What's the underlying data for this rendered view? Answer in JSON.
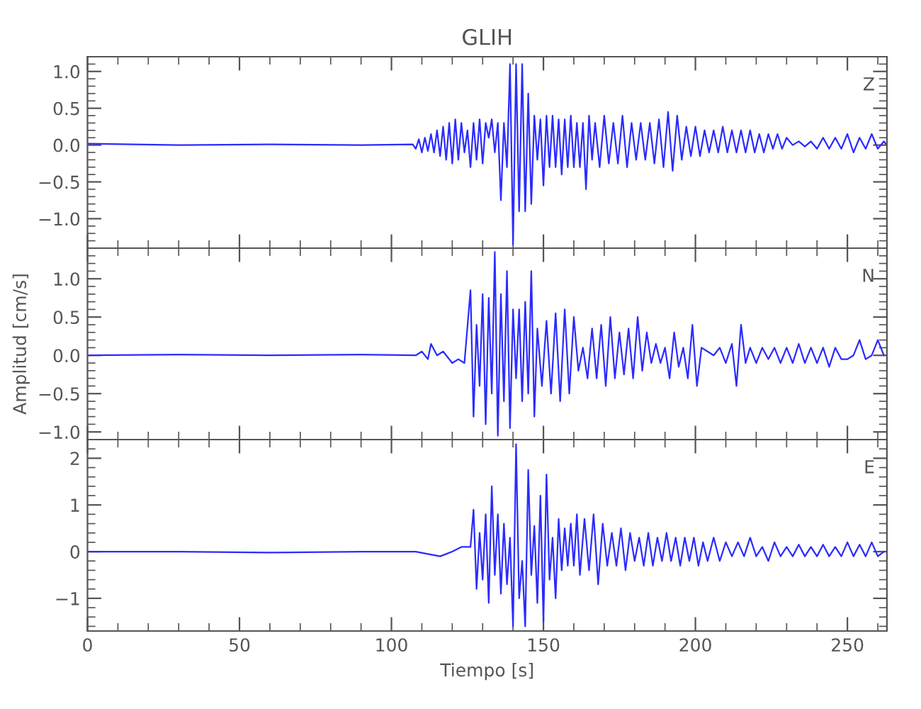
{
  "chart_data": [
    {
      "type": "line",
      "title": "GLIH",
      "annotations": [
        "Z"
      ],
      "xlim": [
        0,
        263
      ],
      "xticks": [
        0,
        50,
        100,
        150,
        200,
        250
      ],
      "ylim": [
        -1.4,
        1.2
      ],
      "yticks": [
        {
          "value": -1,
          "label": "−1.0"
        },
        {
          "value": -0.5,
          "label": "−0.5"
        },
        {
          "value": 0,
          "label": "0.0"
        },
        0.5,
        {
          "value": 1,
          "label": "1.0"
        }
      ],
      "tick_labels": "y",
      "grid": false,
      "legend": false,
      "x": [
        0,
        30,
        60,
        90,
        107,
        108,
        109,
        110,
        111,
        112,
        113,
        114,
        115,
        116,
        117,
        118,
        119,
        120,
        121,
        122,
        123,
        124,
        125,
        126,
        127,
        128,
        129,
        130,
        131,
        132,
        133,
        134,
        135,
        136,
        137,
        138,
        139,
        140,
        141,
        142,
        143,
        144,
        145,
        146,
        147,
        148,
        149,
        150,
        151,
        152,
        153,
        154,
        155,
        156,
        157,
        158,
        159,
        160,
        161,
        162,
        163,
        164,
        165,
        166,
        167,
        168.5,
        170,
        171.5,
        173,
        174.5,
        176,
        177.5,
        179,
        180.5,
        182,
        183.5,
        185,
        186.5,
        188,
        189.5,
        191,
        192.5,
        194,
        195.5,
        197,
        198.5,
        200,
        201.5,
        203,
        204.5,
        206,
        207.5,
        209,
        210.5,
        212,
        213.5,
        215,
        216.5,
        218,
        219.5,
        221,
        222.5,
        224,
        225.5,
        227,
        228.5,
        230,
        232,
        234,
        236,
        238,
        240,
        242,
        244,
        246,
        248,
        250,
        252,
        254,
        256,
        258,
        260,
        262,
        263
      ],
      "series": [
        {
          "color": "#2b2bff",
          "values": [
            0.02,
            0.0,
            0.01,
            0.0,
            0.01,
            -0.05,
            0.08,
            -0.1,
            0.1,
            -0.08,
            0.15,
            -0.1,
            0.2,
            -0.15,
            0.25,
            -0.2,
            0.3,
            -0.25,
            0.35,
            -0.2,
            0.3,
            -0.1,
            0.2,
            -0.3,
            0.3,
            -0.2,
            0.35,
            -0.25,
            0.3,
            0.1,
            0.35,
            -0.1,
            0.3,
            -0.75,
            0.3,
            -0.3,
            1.1,
            -1.35,
            1.1,
            -0.9,
            1.1,
            -0.9,
            0.7,
            -0.8,
            0.4,
            -0.2,
            0.35,
            -0.55,
            0.4,
            -0.3,
            0.4,
            -0.3,
            0.35,
            -0.4,
            0.35,
            -0.3,
            0.4,
            -0.3,
            0.3,
            -0.3,
            0.3,
            -0.6,
            0.4,
            -0.2,
            0.3,
            -0.3,
            0.4,
            -0.25,
            0.3,
            -0.25,
            0.4,
            -0.3,
            0.3,
            -0.2,
            0.3,
            -0.2,
            0.3,
            -0.25,
            0.35,
            -0.3,
            0.45,
            -0.35,
            0.4,
            -0.2,
            0.25,
            -0.15,
            0.25,
            -0.15,
            0.2,
            -0.1,
            0.2,
            -0.1,
            0.25,
            -0.1,
            0.2,
            -0.1,
            0.2,
            -0.1,
            0.2,
            -0.1,
            0.15,
            -0.1,
            0.15,
            -0.05,
            0.15,
            -0.05,
            0.1,
            0.0,
            0.05,
            -0.02,
            0.05,
            -0.05,
            0.1,
            -0.05,
            0.1,
            -0.05,
            0.15,
            -0.1,
            0.1,
            -0.05,
            0.15,
            -0.05,
            0.05,
            0.0
          ]
        }
      ]
    },
    {
      "type": "line",
      "ylabel": "Amplitud [cm/s]",
      "annotations": [
        "N"
      ],
      "xlim": [
        0,
        263
      ],
      "xticks": [
        0,
        50,
        100,
        150,
        200,
        250
      ],
      "ylim": [
        -1.1,
        1.4
      ],
      "yticks": [
        {
          "value": -1,
          "label": "−1.0"
        },
        {
          "value": -0.5,
          "label": "−0.5"
        },
        {
          "value": 0,
          "label": "0.0"
        },
        0.5,
        {
          "value": 1,
          "label": "1.0"
        }
      ],
      "tick_labels": "y",
      "grid": false,
      "legend": false,
      "x": [
        0,
        30,
        60,
        90,
        108,
        110,
        112,
        113,
        115,
        117,
        120,
        122,
        124,
        126,
        127,
        128,
        129,
        130,
        131,
        132,
        133,
        134,
        135,
        136,
        137,
        138,
        139,
        140,
        141,
        142,
        143,
        144,
        145,
        146,
        147,
        148,
        149.5,
        151,
        152.5,
        154,
        155.5,
        157,
        158.5,
        160,
        161.5,
        163,
        164.5,
        166,
        167.5,
        169,
        170.5,
        172,
        173.5,
        175,
        176.5,
        178,
        179.5,
        181,
        182.5,
        184,
        185.5,
        187,
        188.5,
        190,
        191.5,
        193,
        194.5,
        196,
        197.5,
        199,
        200.5,
        202,
        204,
        206,
        208,
        210,
        212,
        213.5,
        215,
        216.5,
        218,
        220,
        222,
        224,
        226,
        228,
        230,
        232,
        234,
        236,
        238,
        240,
        242,
        244,
        246,
        248,
        250,
        252,
        254,
        256,
        258,
        260,
        262
      ],
      "series": [
        {
          "color": "#2b2bff",
          "values": [
            0.0,
            0.01,
            0.0,
            0.01,
            0.0,
            0.05,
            -0.05,
            0.15,
            0.0,
            0.05,
            -0.1,
            -0.05,
            -0.1,
            0.85,
            -0.8,
            0.4,
            -0.4,
            0.8,
            -0.9,
            0.75,
            -0.5,
            1.35,
            -1.05,
            0.8,
            -0.6,
            1.1,
            -0.95,
            0.6,
            -0.3,
            0.6,
            -0.6,
            0.7,
            -0.5,
            1.1,
            -0.8,
            0.35,
            -0.4,
            0.45,
            -0.5,
            0.55,
            -0.6,
            0.6,
            -0.5,
            0.5,
            -0.2,
            0.1,
            -0.3,
            0.35,
            -0.3,
            0.4,
            -0.4,
            0.5,
            -0.3,
            0.3,
            -0.25,
            0.35,
            -0.3,
            0.5,
            -0.2,
            0.3,
            -0.1,
            0.15,
            -0.1,
            0.1,
            -0.3,
            0.3,
            -0.15,
            0.1,
            -0.3,
            0.4,
            -0.4,
            0.1,
            0.05,
            0.0,
            0.1,
            -0.1,
            0.15,
            -0.4,
            0.4,
            -0.1,
            0.1,
            -0.1,
            0.1,
            -0.05,
            0.1,
            -0.1,
            0.1,
            -0.1,
            0.15,
            -0.1,
            0.1,
            -0.1,
            0.1,
            -0.15,
            0.1,
            -0.05,
            -0.05,
            0.0,
            0.2,
            -0.05,
            0.0,
            0.2,
            0.0
          ]
        }
      ]
    },
    {
      "type": "line",
      "xlabel": "Tiempo [s]",
      "annotations": [
        "E"
      ],
      "xlim": [
        0,
        263
      ],
      "xticks": [
        0,
        50,
        100,
        150,
        200,
        250
      ],
      "ylim": [
        -1.7,
        2.4
      ],
      "yticks": [
        {
          "value": -1,
          "label": "−1"
        },
        0,
        1,
        2
      ],
      "grid": false,
      "legend": false,
      "x": [
        0,
        30,
        60,
        90,
        108,
        112,
        116,
        118,
        120,
        123,
        126,
        127,
        128,
        129,
        130,
        131,
        132,
        133,
        134,
        135,
        136,
        137,
        138,
        139,
        140,
        141,
        142,
        143,
        144,
        145,
        146,
        147,
        148,
        149,
        150,
        151,
        152,
        153,
        154,
        155,
        156,
        157,
        158,
        159,
        160,
        161,
        162,
        163.5,
        165,
        166.5,
        168,
        169.5,
        171,
        172.5,
        174,
        175.5,
        177,
        178.5,
        180,
        181.5,
        183,
        184.5,
        186,
        187.5,
        189,
        190.5,
        192,
        193.5,
        195,
        196.5,
        198,
        199.5,
        201,
        202.5,
        204,
        206,
        208,
        210,
        212,
        214,
        216,
        218,
        220,
        222,
        224,
        226,
        228,
        230,
        232,
        234,
        236,
        238,
        240,
        242,
        244,
        246,
        248,
        250,
        252,
        254,
        256,
        258,
        260,
        262
      ],
      "series": [
        {
          "color": "#2b2bff",
          "values": [
            0.0,
            0.0,
            -0.02,
            0.0,
            0.0,
            -0.05,
            -0.1,
            -0.05,
            0.0,
            0.1,
            0.1,
            0.9,
            -0.8,
            0.4,
            -0.6,
            0.8,
            -1.1,
            1.4,
            -0.5,
            0.8,
            -0.9,
            0.6,
            -0.7,
            0.3,
            -1.6,
            2.3,
            -1.0,
            -0.2,
            -1.6,
            1.75,
            -0.5,
            0.55,
            -1.1,
            1.2,
            -1.5,
            1.65,
            -0.6,
            0.3,
            -1.0,
            0.7,
            -0.4,
            0.5,
            -0.3,
            0.6,
            -0.3,
            0.8,
            -0.5,
            0.7,
            -0.4,
            0.8,
            -0.7,
            0.6,
            -0.3,
            0.4,
            -0.3,
            0.5,
            -0.4,
            0.4,
            -0.2,
            0.3,
            -0.3,
            0.4,
            -0.3,
            0.3,
            -0.2,
            0.4,
            -0.2,
            0.3,
            -0.3,
            0.3,
            -0.2,
            0.3,
            -0.3,
            0.2,
            -0.2,
            0.3,
            -0.2,
            0.2,
            -0.1,
            0.2,
            -0.1,
            0.3,
            -0.1,
            0.1,
            -0.2,
            0.2,
            -0.1,
            0.1,
            -0.1,
            0.15,
            -0.1,
            0.1,
            -0.1,
            0.15,
            -0.1,
            0.1,
            -0.1,
            0.2,
            -0.1,
            0.15,
            -0.1,
            0.2,
            -0.1,
            0.0
          ]
        }
      ]
    }
  ]
}
